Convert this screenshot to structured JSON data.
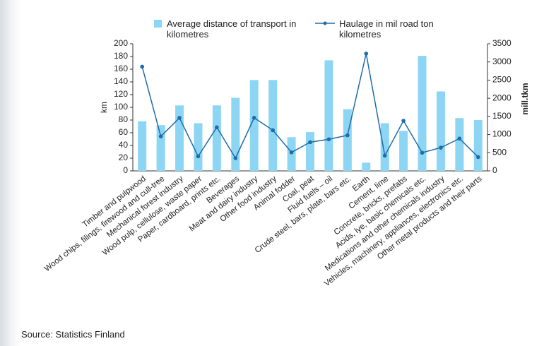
{
  "chart_data": {
    "type": "bar_line",
    "categories": [
      "Timber and pulpwood",
      "Wood chips, filings, firewood and cull-tree",
      "Mechanical forest industry",
      "Wood pulp, cellulose, waste paper",
      "Paper, cardboard, prints etc.",
      "Beverages",
      "Meat and dairy industry",
      "Other food industry",
      "Animal fodder",
      "Coal, peat",
      "Fluid fuels – oil",
      "Crude steel, bars, plate, bars etc.",
      "Earth",
      "Cement, lime",
      "Concrete, bricks, prefabs",
      "Acids, lye, basic chemicals etc.",
      "Medications and other chemicals industry",
      "Vehicles, machinery, appliances, electronics etc.",
      "Other metal products and their parts"
    ],
    "series": [
      {
        "name": "Average distance of transport in kilometres",
        "type": "bar",
        "color": "#8dd6f3",
        "axis": "y",
        "values": [
          78,
          72,
          103,
          75,
          103,
          115,
          143,
          143,
          53,
          61,
          174,
          97,
          13,
          75,
          63,
          181,
          125,
          83,
          80
        ]
      },
      {
        "name": "Haulage in mil road ton kilometres",
        "type": "line",
        "color": "#1f6cab",
        "axis": "y2",
        "values": [
          2870,
          950,
          1460,
          400,
          1200,
          350,
          1460,
          1120,
          510,
          790,
          870,
          980,
          3230,
          420,
          1380,
          500,
          640,
          890,
          380
        ]
      }
    ],
    "ylabel": "km",
    "y2label": "mill.tkm",
    "ylim": [
      0,
      200
    ],
    "yticks": [
      0,
      20,
      40,
      60,
      80,
      100,
      120,
      140,
      160,
      180,
      200
    ],
    "y2lim": [
      0,
      3500
    ],
    "y2ticks": [
      0,
      500,
      1000,
      1500,
      2000,
      2500,
      3000,
      3500
    ],
    "source": "Source: Statistics Finland"
  }
}
